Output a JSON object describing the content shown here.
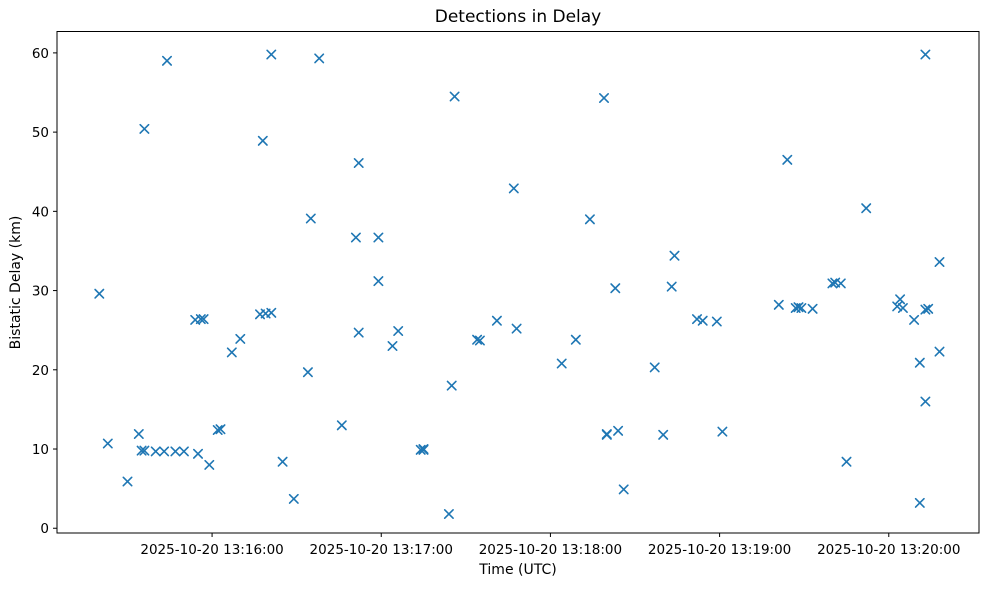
{
  "figure": {
    "background_color": "#ffffff",
    "text_color": "#000000"
  },
  "chart_data": {
    "type": "scatter",
    "title": "Detections in Delay",
    "xlabel": "Time (UTC)",
    "ylabel": "Bistatic Delay (km)",
    "legend": null,
    "grid": false,
    "marker": "x",
    "marker_color": "#1f77b4",
    "date": "2025-10-20",
    "x_axis": {
      "range_start": "13:15:05",
      "range_end": "13:20:32",
      "tick_times": [
        "13:16:00",
        "13:17:00",
        "13:18:00",
        "13:19:00",
        "13:20:00"
      ],
      "tick_labels": [
        "2025-10-20 13:16:00",
        "2025-10-20 13:17:00",
        "2025-10-20 13:18:00",
        "2025-10-20 13:19:00",
        "2025-10-20 13:20:00"
      ]
    },
    "y_axis": {
      "range": [
        -0.6,
        62.7
      ],
      "ticks": [
        0,
        10,
        20,
        30,
        40,
        50,
        60
      ]
    },
    "points_format": [
      "time_utc",
      "bistatic_delay_km"
    ],
    "points": [
      [
        "13:15:20",
        29.6
      ],
      [
        "13:15:23",
        10.7
      ],
      [
        "13:15:30",
        5.9
      ],
      [
        "13:15:34",
        11.9
      ],
      [
        "13:15:35",
        9.8
      ],
      [
        "13:15:36",
        9.8
      ],
      [
        "13:15:36",
        50.4
      ],
      [
        "13:15:40",
        9.7
      ],
      [
        "13:15:43",
        9.7
      ],
      [
        "13:15:44",
        59.0
      ],
      [
        "13:15:47",
        9.7
      ],
      [
        "13:15:50",
        9.7
      ],
      [
        "13:15:54",
        26.3
      ],
      [
        "13:15:55",
        9.4
      ],
      [
        "13:15:56",
        26.4
      ],
      [
        "13:15:57",
        26.4
      ],
      [
        "13:15:59",
        8.0
      ],
      [
        "13:16:02",
        12.4
      ],
      [
        "13:16:03",
        12.5
      ],
      [
        "13:16:07",
        22.2
      ],
      [
        "13:16:10",
        23.9
      ],
      [
        "13:16:17",
        27.0
      ],
      [
        "13:16:18",
        48.9
      ],
      [
        "13:16:19",
        27.1
      ],
      [
        "13:16:21",
        59.8
      ],
      [
        "13:16:21",
        27.2
      ],
      [
        "13:16:25",
        8.4
      ],
      [
        "13:16:29",
        3.7
      ],
      [
        "13:16:34",
        19.7
      ],
      [
        "13:16:35",
        39.1
      ],
      [
        "13:16:38",
        59.3
      ],
      [
        "13:16:46",
        13.0
      ],
      [
        "13:16:51",
        36.7
      ],
      [
        "13:16:52",
        46.1
      ],
      [
        "13:16:52",
        24.7
      ],
      [
        "13:16:59",
        36.7
      ],
      [
        "13:16:59",
        31.2
      ],
      [
        "13:17:04",
        23.0
      ],
      [
        "13:17:06",
        24.9
      ],
      [
        "13:17:14",
        9.9
      ],
      [
        "13:17:15",
        9.9
      ],
      [
        "13:17:15",
        10.0
      ],
      [
        "13:17:24",
        1.8
      ],
      [
        "13:17:25",
        18.0
      ],
      [
        "13:17:26",
        54.5
      ],
      [
        "13:17:34",
        23.8
      ],
      [
        "13:17:35",
        23.7
      ],
      [
        "13:17:41",
        26.2
      ],
      [
        "13:17:47",
        42.9
      ],
      [
        "13:17:48",
        25.2
      ],
      [
        "13:18:04",
        20.8
      ],
      [
        "13:18:09",
        23.8
      ],
      [
        "13:18:14",
        39.0
      ],
      [
        "13:18:19",
        54.3
      ],
      [
        "13:18:20",
        11.8
      ],
      [
        "13:18:20",
        11.9
      ],
      [
        "13:18:23",
        30.3
      ],
      [
        "13:18:24",
        12.3
      ],
      [
        "13:18:26",
        4.9
      ],
      [
        "13:18:37",
        20.3
      ],
      [
        "13:18:40",
        11.8
      ],
      [
        "13:18:43",
        30.5
      ],
      [
        "13:18:44",
        34.4
      ],
      [
        "13:18:52",
        26.4
      ],
      [
        "13:18:54",
        26.2
      ],
      [
        "13:18:59",
        26.1
      ],
      [
        "13:19:01",
        12.2
      ],
      [
        "13:19:21",
        28.2
      ],
      [
        "13:19:24",
        46.5
      ],
      [
        "13:19:27",
        27.8
      ],
      [
        "13:19:28",
        27.9
      ],
      [
        "13:19:29",
        27.8
      ],
      [
        "13:19:33",
        27.7
      ],
      [
        "13:19:40",
        30.9
      ],
      [
        "13:19:41",
        31.0
      ],
      [
        "13:19:43",
        30.9
      ],
      [
        "13:19:45",
        8.4
      ],
      [
        "13:19:52",
        40.4
      ],
      [
        "13:20:03",
        28.0
      ],
      [
        "13:20:04",
        28.9
      ],
      [
        "13:20:05",
        27.8
      ],
      [
        "13:20:09",
        26.3
      ],
      [
        "13:20:11",
        20.9
      ],
      [
        "13:20:11",
        3.2
      ],
      [
        "13:20:13",
        59.8
      ],
      [
        "13:20:13",
        27.6
      ],
      [
        "13:20:13",
        16.0
      ],
      [
        "13:20:14",
        27.7
      ],
      [
        "13:20:18",
        33.6
      ],
      [
        "13:20:18",
        22.3
      ]
    ]
  }
}
